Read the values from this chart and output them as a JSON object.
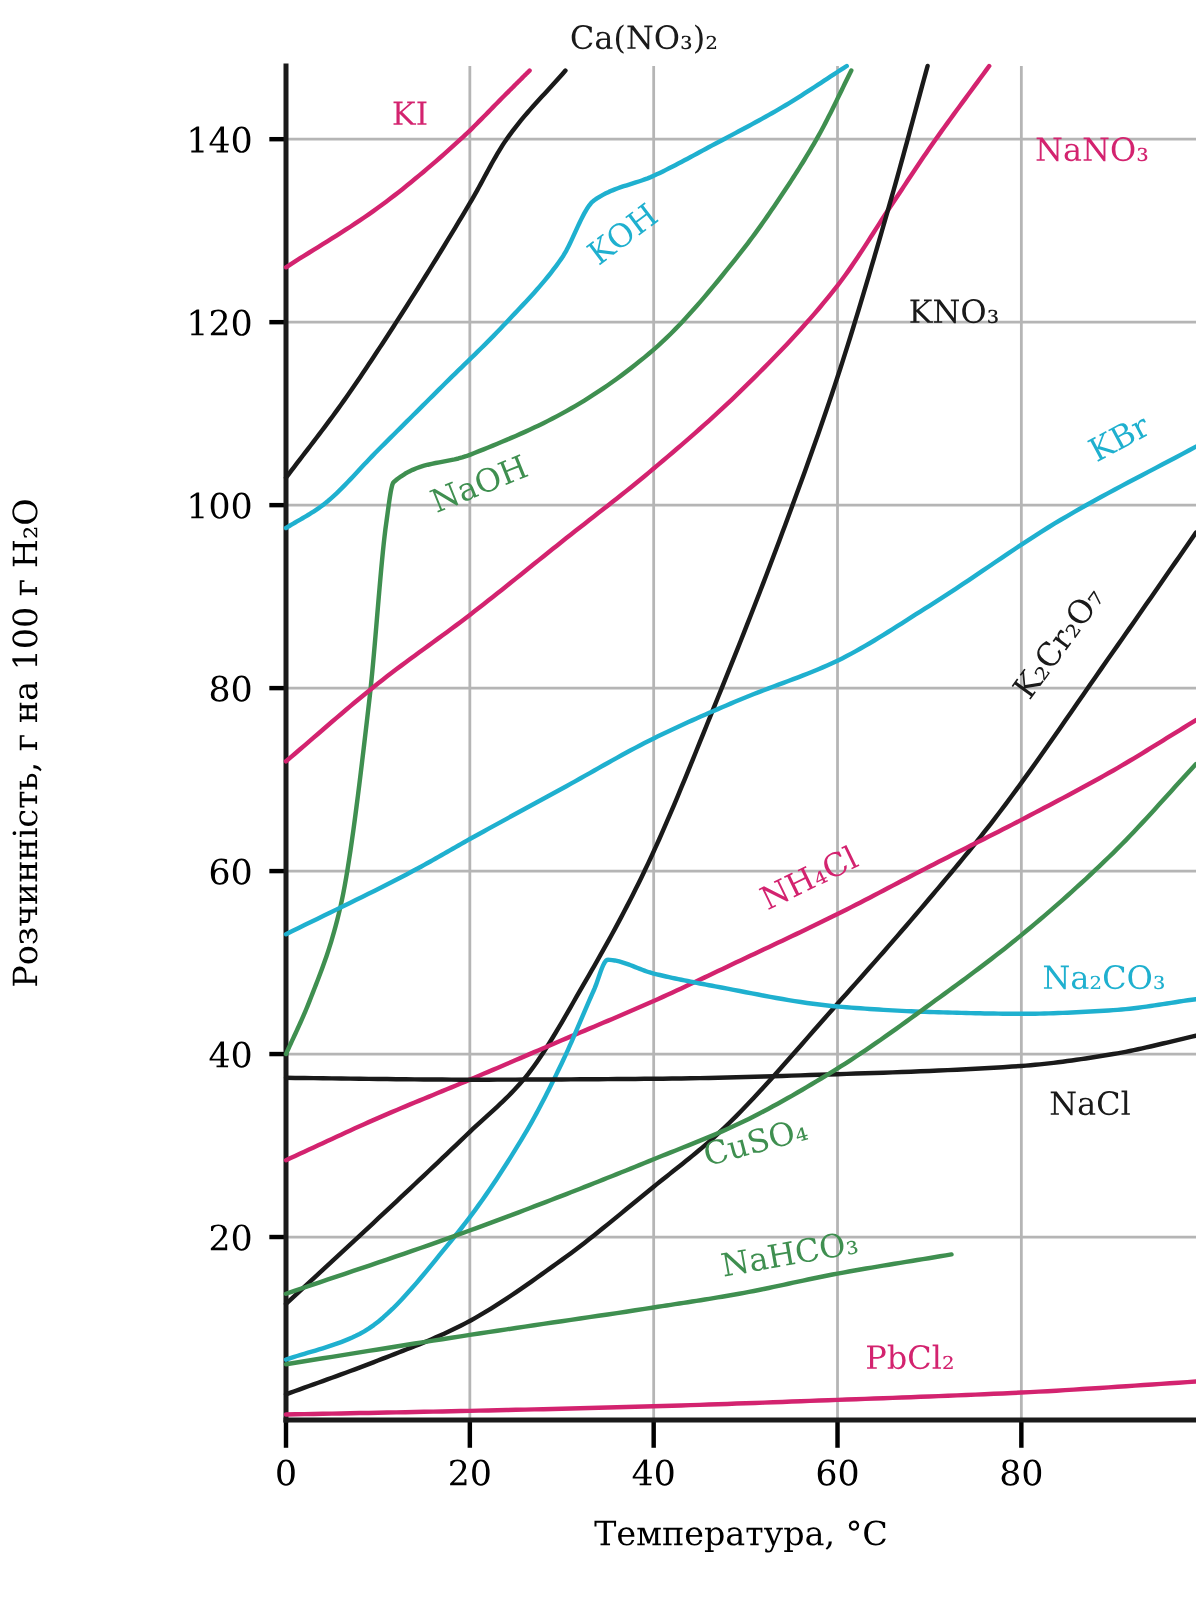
{
  "chart_data": {
    "type": "line",
    "xlabel": "Температура, °C",
    "ylabel": "Розчинність, г на 100 г H₂O",
    "xlim": [
      0,
      99
    ],
    "ylim": [
      0,
      148
    ],
    "xticks": [
      0,
      20,
      40,
      60,
      80
    ],
    "yticks": [
      20,
      40,
      60,
      80,
      100,
      120,
      140
    ],
    "grid": true,
    "series": [
      {
        "name": "KI",
        "color": "#d3236f",
        "x": [
          0,
          10,
          19,
          24,
          26.5
        ],
        "values": [
          126,
          132.5,
          140,
          145,
          147.5
        ]
      },
      {
        "name": "Ca(NO₃)₂",
        "color": "#1a1a1a",
        "x": [
          0,
          6,
          12,
          20,
          24,
          30.4
        ],
        "values": [
          103,
          111,
          120,
          133,
          140,
          147.5
        ]
      },
      {
        "name": "KOH",
        "color": "#1fb0cf",
        "x": [
          0,
          4,
          10,
          17,
          24,
          30,
          33.5,
          40,
          46.7,
          54,
          61
        ],
        "values": [
          97.5,
          100,
          106,
          113,
          120,
          127,
          133.3,
          136,
          139.5,
          143.5,
          148
        ]
      },
      {
        "name": "NaOH",
        "color": "#3f8f50",
        "x": [
          0,
          2.6,
          5.9,
          9.1,
          10.9,
          11.7,
          20,
          30,
          40,
          49.3,
          54,
          58,
          61.5
        ],
        "values": [
          40,
          45.9,
          56,
          79,
          98,
          102.5,
          105.5,
          110,
          117,
          127.4,
          134,
          140.5,
          147.5
        ]
      },
      {
        "name": "NaNO₃",
        "color": "#d3236f",
        "x": [
          0,
          10,
          20,
          30,
          40,
          50,
          60,
          66,
          70,
          76.5
        ],
        "values": [
          72,
          80.5,
          88,
          96,
          104,
          113,
          124,
          133,
          139,
          148
        ]
      },
      {
        "name": "KNO₃",
        "color": "#1a1a1a",
        "x": [
          0,
          10,
          20,
          26,
          32.6,
          39,
          47,
          54,
          60,
          65.7,
          69.8
        ],
        "values": [
          12.7,
          22,
          31.5,
          37.4,
          48,
          60,
          79,
          97,
          114,
          133,
          148
        ]
      },
      {
        "name": "KBr",
        "color": "#1fb0cf",
        "x": [
          0,
          13.8,
          20,
          30,
          40,
          49.3,
          60,
          70,
          84.3,
          99
        ],
        "values": [
          53.1,
          60,
          63.5,
          69,
          74.5,
          78.7,
          83,
          89,
          98.4,
          106.4
        ]
      },
      {
        "name": "K₂Cr₂O₇",
        "color": "#1a1a1a",
        "x": [
          0,
          10,
          19,
          30,
          40,
          47,
          60,
          70,
          77,
          90,
          99
        ],
        "values": [
          2.8,
          6.5,
          10.3,
          17.5,
          25.5,
          31.3,
          45.5,
          57,
          65.6,
          84,
          97
        ]
      },
      {
        "name": "NH₄Cl",
        "color": "#d3236f",
        "x": [
          0,
          10,
          20,
          30,
          40,
          50,
          60,
          70,
          80,
          90,
          99
        ],
        "values": [
          28.4,
          33,
          37.2,
          41.5,
          45.8,
          50.5,
          55.3,
          60.5,
          65.6,
          71,
          76.5
        ]
      },
      {
        "name": "Na₂CO₃",
        "color": "#1fb0cf",
        "x": [
          0,
          8,
          18.3,
          26,
          30,
          33.5,
          35,
          40,
          46.7,
          60,
          70,
          80,
          90,
          99
        ],
        "values": [
          6.6,
          9.4,
          20,
          31.3,
          39,
          47,
          50.3,
          48.8,
          47.4,
          45.2,
          44.6,
          44.4,
          44.8,
          46
        ]
      },
      {
        "name": "NaCl",
        "color": "#1a1a1a",
        "x": [
          0,
          20,
          40,
          60,
          80,
          90,
          99
        ],
        "values": [
          37.4,
          37.2,
          37.3,
          37.8,
          38.7,
          40,
          42
        ]
      },
      {
        "name": "CuSO₄",
        "color": "#3f8f50",
        "x": [
          0,
          18.3,
          30,
          40,
          49.3,
          59.8,
          70.7,
          80,
          90,
          99
        ],
        "values": [
          13.8,
          20.1,
          24.5,
          28.5,
          32.4,
          38.3,
          45.9,
          53,
          62,
          71.7
        ]
      },
      {
        "name": "NaHCO₃",
        "color": "#3f8f50",
        "x": [
          0,
          20,
          40,
          49.3,
          60,
          72.4
        ],
        "values": [
          6.1,
          9.3,
          12.3,
          13.8,
          16,
          18.1
        ]
      },
      {
        "name": "PbCl₂",
        "color": "#d3236f",
        "x": [
          0,
          20,
          40,
          60,
          80,
          99
        ],
        "values": [
          0.6,
          1.0,
          1.5,
          2.2,
          3.0,
          4.2
        ]
      }
    ]
  }
}
